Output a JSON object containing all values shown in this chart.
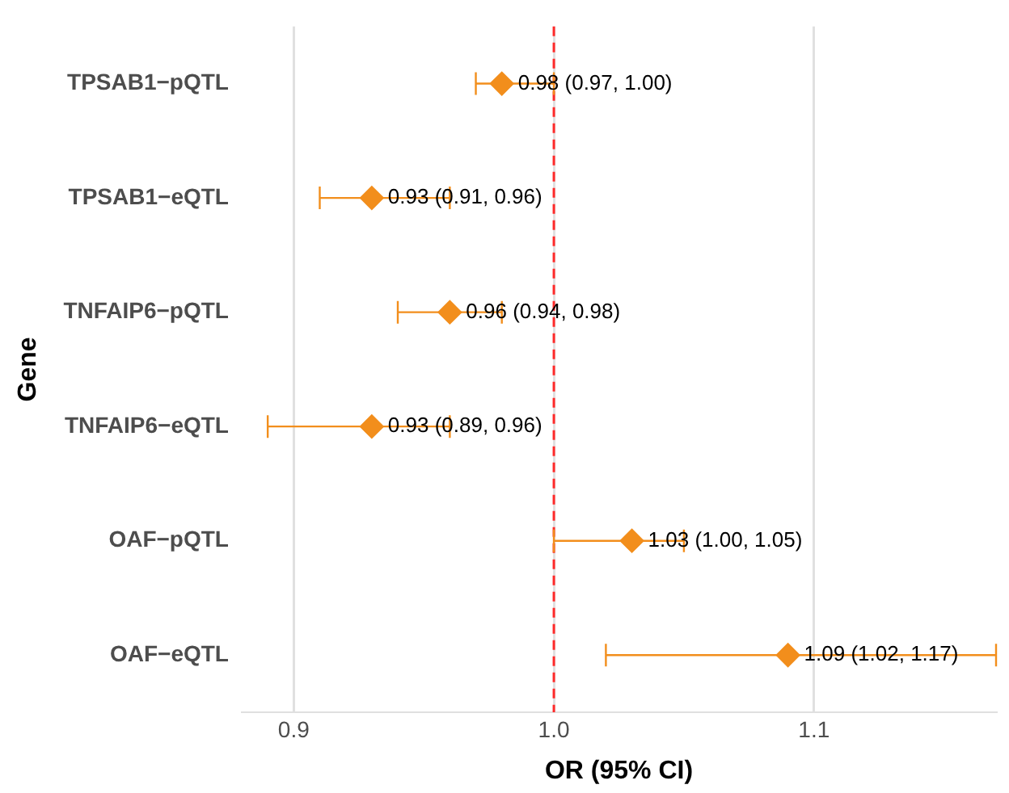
{
  "chart_data": {
    "type": "scatter",
    "orientation": "horizontal",
    "xlabel": "OR (95% CI)",
    "ylabel": "Gene",
    "categories": [
      "TPSAB1−pQTL",
      "TPSAB1−eQTL",
      "TNFAIP6−pQTL",
      "TNFAIP6−eQTL",
      "OAF−pQTL",
      "OAF−eQTL"
    ],
    "values": [
      0.98,
      0.93,
      0.96,
      0.93,
      1.03,
      1.09
    ],
    "errors": [
      [
        0.97,
        1.0
      ],
      [
        0.91,
        0.96
      ],
      [
        0.94,
        0.98
      ],
      [
        0.89,
        0.96
      ],
      [
        1.0,
        1.05
      ],
      [
        1.02,
        1.17
      ]
    ],
    "value_labels": [
      "0.98 (0.97, 1.00)",
      "0.93 (0.91, 0.96)",
      "0.96 (0.94, 0.98)",
      "0.93 (0.89, 0.96)",
      "1.03 (1.00, 1.05)",
      "1.09 (1.02, 1.17)"
    ],
    "color": "#f28e1c",
    "marker": "diamond",
    "xlim": [
      0.88,
      1.17
    ],
    "xticks": [
      {
        "value": 0.9,
        "label": "0.9"
      },
      {
        "value": 1.0,
        "label": "1.0"
      },
      {
        "value": 1.1,
        "label": "1.1"
      }
    ],
    "grid": "x",
    "legend": false,
    "ref_lines": [
      {
        "axis": "x",
        "value": 1.0,
        "color": "#ff2a2a",
        "line_style": "dashed"
      }
    ]
  }
}
